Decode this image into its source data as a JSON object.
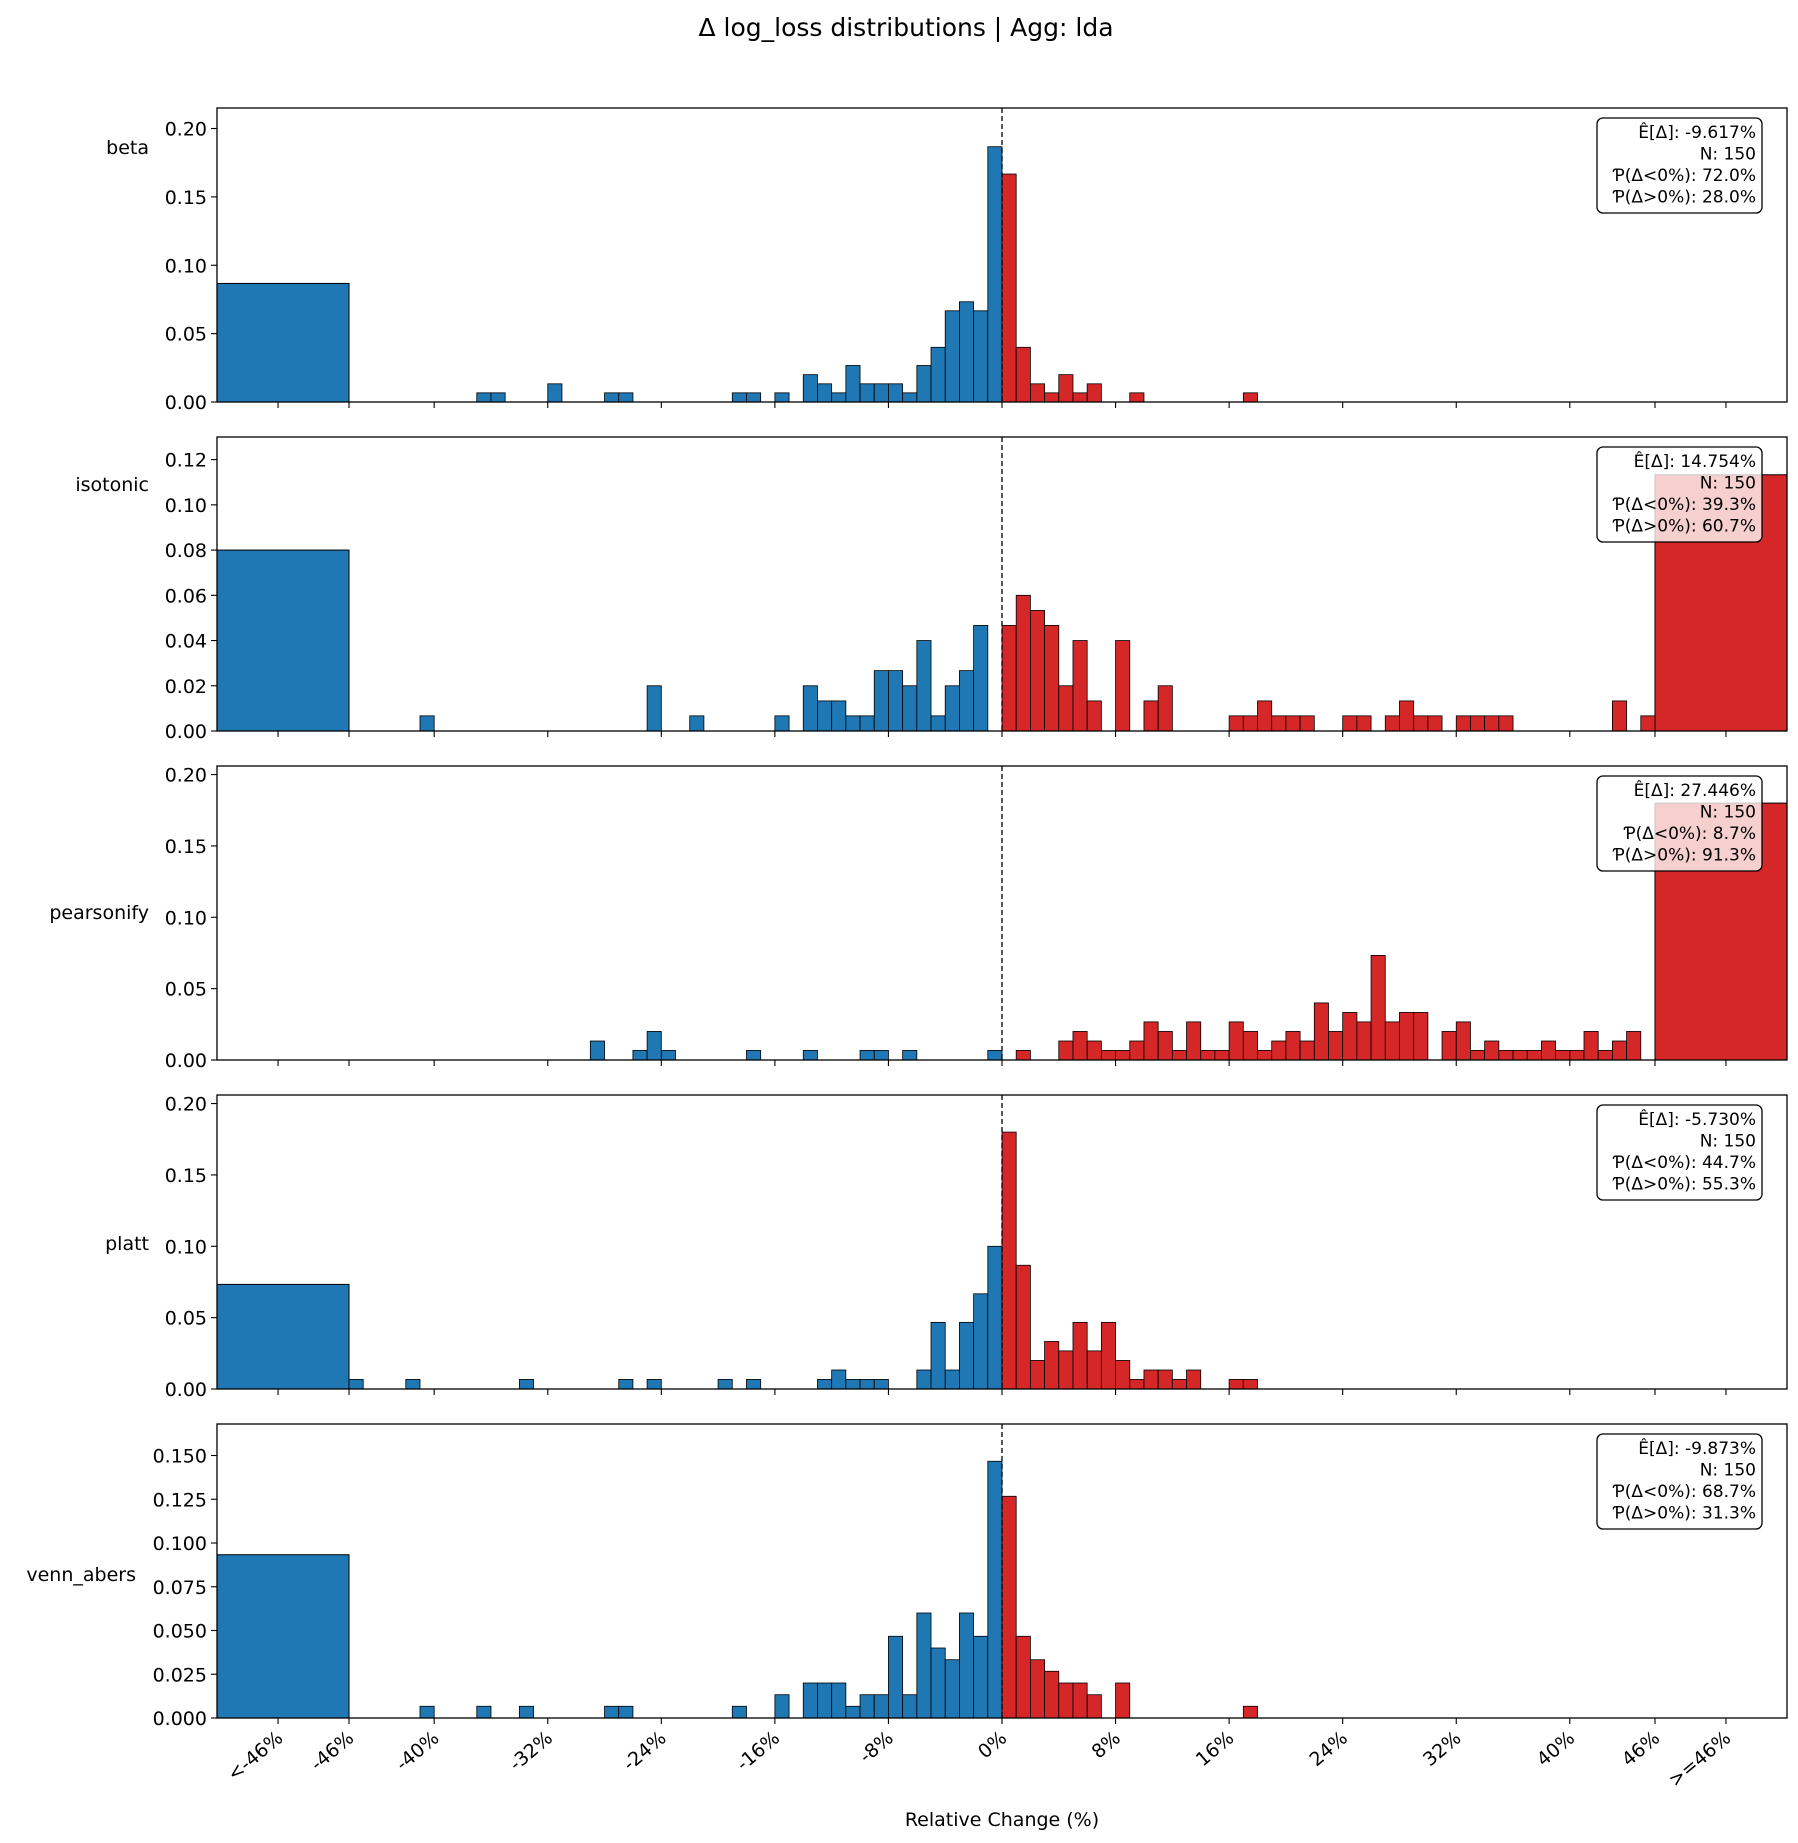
{
  "chart_data": {
    "type": "histogram-grid",
    "title": "Δ log_loss distributions | Agg: lda",
    "xlabel": "Relative Change (%)",
    "xticks": [
      "<-46%",
      "-46%",
      "-40%",
      "-32%",
      "-24%",
      "-16%",
      "-8%",
      "0%",
      "8%",
      "16%",
      "24%",
      "32%",
      "40%",
      "46%",
      ">=46%"
    ],
    "xtick_values": [
      -51,
      -46,
      -40,
      -32,
      -24,
      -16,
      -8,
      0,
      8,
      16,
      24,
      32,
      40,
      46,
      51
    ],
    "xlim": [
      -55.3,
      55.3
    ],
    "bin_width": 1,
    "overflow_threshold": 46,
    "zero_line": 0,
    "colors": {
      "negative": "#1f77b4",
      "positive": "#d62728",
      "edge": "#000000"
    },
    "panels": [
      {
        "name": "beta",
        "ylim": [
          0,
          0.215
        ],
        "yticks": [
          "0.00",
          "0.05",
          "0.10",
          "0.15",
          "0.20"
        ],
        "ytick_values": [
          0,
          0.05,
          0.1,
          0.15,
          0.2
        ],
        "underflow": 0.0867,
        "overflow": 0,
        "bins": [
          [
            -37,
            0.0067
          ],
          [
            -36,
            0.0067
          ],
          [
            -32,
            0.0133
          ],
          [
            -28,
            0.0067
          ],
          [
            -27,
            0.0067
          ],
          [
            -19,
            0.0067
          ],
          [
            -18,
            0.0067
          ],
          [
            -16,
            0.0067
          ],
          [
            -14,
            0.02
          ],
          [
            -13,
            0.0133
          ],
          [
            -12,
            0.0067
          ],
          [
            -11,
            0.0267
          ],
          [
            -10,
            0.0133
          ],
          [
            -9,
            0.0133
          ],
          [
            -8,
            0.0133
          ],
          [
            -7,
            0.0067
          ],
          [
            -6,
            0.0267
          ],
          [
            -5,
            0.04
          ],
          [
            -4,
            0.0667
          ],
          [
            -3,
            0.0733
          ],
          [
            -2,
            0.0667
          ],
          [
            -1,
            0.1867
          ],
          [
            0,
            0.1667
          ],
          [
            1,
            0.04
          ],
          [
            2,
            0.0133
          ],
          [
            3,
            0.0067
          ],
          [
            4,
            0.02
          ],
          [
            5,
            0.0067
          ],
          [
            6,
            0.0133
          ],
          [
            9,
            0.0067
          ],
          [
            17,
            0.0067
          ]
        ],
        "stats": [
          "Ê[Δ]: -9.617%",
          "N: 150",
          "Ƥ(Δ<0%): 72.0%",
          "Ƥ(Δ>0%): 28.0%"
        ]
      },
      {
        "name": "isotonic",
        "ylim": [
          0,
          0.13
        ],
        "yticks": [
          "0.00",
          "0.02",
          "0.04",
          "0.06",
          "0.08",
          "0.10",
          "0.12"
        ],
        "ytick_values": [
          0,
          0.02,
          0.04,
          0.06,
          0.08,
          0.1,
          0.12
        ],
        "underflow": 0.08,
        "overflow": 0.1133,
        "bins": [
          [
            -41,
            0.0067
          ],
          [
            -25,
            0.02
          ],
          [
            -22,
            0.0067
          ],
          [
            -16,
            0.0067
          ],
          [
            -14,
            0.02
          ],
          [
            -13,
            0.0133
          ],
          [
            -12,
            0.0133
          ],
          [
            -11,
            0.0067
          ],
          [
            -10,
            0.0067
          ],
          [
            -9,
            0.0267
          ],
          [
            -8,
            0.0267
          ],
          [
            -7,
            0.02
          ],
          [
            -6,
            0.04
          ],
          [
            -5,
            0.0067
          ],
          [
            -4,
            0.02
          ],
          [
            -3,
            0.0267
          ],
          [
            -2,
            0.0467
          ],
          [
            0,
            0.0467
          ],
          [
            1,
            0.06
          ],
          [
            2,
            0.0533
          ],
          [
            3,
            0.0467
          ],
          [
            4,
            0.02
          ],
          [
            5,
            0.04
          ],
          [
            6,
            0.0133
          ],
          [
            8,
            0.04
          ],
          [
            10,
            0.0133
          ],
          [
            11,
            0.02
          ],
          [
            16,
            0.0067
          ],
          [
            17,
            0.0067
          ],
          [
            18,
            0.0133
          ],
          [
            19,
            0.0067
          ],
          [
            20,
            0.0067
          ],
          [
            21,
            0.0067
          ],
          [
            24,
            0.0067
          ],
          [
            25,
            0.0067
          ],
          [
            27,
            0.0067
          ],
          [
            28,
            0.0133
          ],
          [
            29,
            0.0067
          ],
          [
            30,
            0.0067
          ],
          [
            32,
            0.0067
          ],
          [
            33,
            0.0067
          ],
          [
            34,
            0.0067
          ],
          [
            35,
            0.0067
          ],
          [
            43,
            0.0133
          ],
          [
            45,
            0.0067
          ]
        ],
        "stats": [
          "Ê[Δ]: 14.754%",
          "N: 150",
          "Ƥ(Δ<0%): 39.3%",
          "Ƥ(Δ>0%): 60.7%"
        ]
      },
      {
        "name": "pearsonify",
        "ylim": [
          0,
          0.206
        ],
        "yticks": [
          "0.00",
          "0.05",
          "0.10",
          "0.15",
          "0.20"
        ],
        "ytick_values": [
          0,
          0.05,
          0.1,
          0.15,
          0.2
        ],
        "underflow": 0,
        "overflow": 0.18,
        "bins": [
          [
            -29,
            0.0133
          ],
          [
            -26,
            0.0067
          ],
          [
            -25,
            0.02
          ],
          [
            -24,
            0.0067
          ],
          [
            -18,
            0.0067
          ],
          [
            -14,
            0.0067
          ],
          [
            -10,
            0.0067
          ],
          [
            -9,
            0.0067
          ],
          [
            -7,
            0.0067
          ],
          [
            -1,
            0.0067
          ],
          [
            1,
            0.0067
          ],
          [
            4,
            0.0133
          ],
          [
            5,
            0.02
          ],
          [
            6,
            0.0133
          ],
          [
            7,
            0.0067
          ],
          [
            8,
            0.0067
          ],
          [
            9,
            0.0133
          ],
          [
            10,
            0.0267
          ],
          [
            11,
            0.02
          ],
          [
            12,
            0.0067
          ],
          [
            13,
            0.0267
          ],
          [
            14,
            0.0067
          ],
          [
            15,
            0.0067
          ],
          [
            16,
            0.0267
          ],
          [
            17,
            0.02
          ],
          [
            18,
            0.0067
          ],
          [
            19,
            0.0133
          ],
          [
            20,
            0.02
          ],
          [
            21,
            0.0133
          ],
          [
            22,
            0.04
          ],
          [
            23,
            0.02
          ],
          [
            24,
            0.0333
          ],
          [
            25,
            0.0267
          ],
          [
            26,
            0.0733
          ],
          [
            27,
            0.0267
          ],
          [
            28,
            0.0333
          ],
          [
            29,
            0.0333
          ],
          [
            31,
            0.02
          ],
          [
            32,
            0.0267
          ],
          [
            33,
            0.0067
          ],
          [
            34,
            0.0133
          ],
          [
            35,
            0.0067
          ],
          [
            36,
            0.0067
          ],
          [
            37,
            0.0067
          ],
          [
            38,
            0.0133
          ],
          [
            39,
            0.0067
          ],
          [
            40,
            0.0067
          ],
          [
            41,
            0.02
          ],
          [
            42,
            0.0067
          ],
          [
            43,
            0.0133
          ],
          [
            44,
            0.02
          ]
        ],
        "stats": [
          "Ê[Δ]: 27.446%",
          "N: 150",
          "Ƥ(Δ<0%): 8.7%",
          "Ƥ(Δ>0%): 91.3%"
        ]
      },
      {
        "name": "platt",
        "ylim": [
          0,
          0.206
        ],
        "yticks": [
          "0.00",
          "0.05",
          "0.10",
          "0.15",
          "0.20"
        ],
        "ytick_values": [
          0,
          0.05,
          0.1,
          0.15,
          0.2
        ],
        "underflow": 0.0733,
        "overflow": 0,
        "bins": [
          [
            -46,
            0.0067
          ],
          [
            -42,
            0.0067
          ],
          [
            -34,
            0.0067
          ],
          [
            -27,
            0.0067
          ],
          [
            -25,
            0.0067
          ],
          [
            -20,
            0.0067
          ],
          [
            -18,
            0.0067
          ],
          [
            -13,
            0.0067
          ],
          [
            -12,
            0.0133
          ],
          [
            -11,
            0.0067
          ],
          [
            -10,
            0.0067
          ],
          [
            -9,
            0.0067
          ],
          [
            -6,
            0.0133
          ],
          [
            -5,
            0.0467
          ],
          [
            -4,
            0.0133
          ],
          [
            -3,
            0.0467
          ],
          [
            -2,
            0.0667
          ],
          [
            -1,
            0.1
          ],
          [
            0,
            0.18
          ],
          [
            1,
            0.0867
          ],
          [
            2,
            0.02
          ],
          [
            3,
            0.0333
          ],
          [
            4,
            0.0267
          ],
          [
            5,
            0.0467
          ],
          [
            6,
            0.0267
          ],
          [
            7,
            0.0467
          ],
          [
            8,
            0.02
          ],
          [
            9,
            0.0067
          ],
          [
            10,
            0.0133
          ],
          [
            11,
            0.0133
          ],
          [
            12,
            0.0067
          ],
          [
            13,
            0.0133
          ],
          [
            16,
            0.0067
          ],
          [
            17,
            0.0067
          ]
        ],
        "stats": [
          "Ê[Δ]: -5.730%",
          "N: 150",
          "Ƥ(Δ<0%): 44.7%",
          "Ƥ(Δ>0%): 55.3%"
        ]
      },
      {
        "name": "venn_abers",
        "ylim": [
          0,
          0.168
        ],
        "yticks": [
          "0.000",
          "0.025",
          "0.050",
          "0.075",
          "0.100",
          "0.125",
          "0.150"
        ],
        "ytick_values": [
          0,
          0.025,
          0.05,
          0.075,
          0.1,
          0.125,
          0.15
        ],
        "underflow": 0.0933,
        "overflow": 0,
        "bins": [
          [
            -41,
            0.0067
          ],
          [
            -37,
            0.0067
          ],
          [
            -34,
            0.0067
          ],
          [
            -28,
            0.0067
          ],
          [
            -27,
            0.0067
          ],
          [
            -19,
            0.0067
          ],
          [
            -16,
            0.0133
          ],
          [
            -14,
            0.02
          ],
          [
            -13,
            0.02
          ],
          [
            -12,
            0.02
          ],
          [
            -11,
            0.0067
          ],
          [
            -10,
            0.0133
          ],
          [
            -9,
            0.0133
          ],
          [
            -8,
            0.0467
          ],
          [
            -7,
            0.0133
          ],
          [
            -6,
            0.06
          ],
          [
            -5,
            0.04
          ],
          [
            -4,
            0.0333
          ],
          [
            -3,
            0.06
          ],
          [
            -2,
            0.0467
          ],
          [
            -1,
            0.1467
          ],
          [
            0,
            0.1267
          ],
          [
            1,
            0.0467
          ],
          [
            2,
            0.0333
          ],
          [
            3,
            0.0267
          ],
          [
            4,
            0.02
          ],
          [
            5,
            0.02
          ],
          [
            6,
            0.0133
          ],
          [
            8,
            0.02
          ],
          [
            17,
            0.0067
          ]
        ],
        "stats": [
          "Ê[Δ]: -9.873%",
          "N: 150",
          "Ƥ(Δ<0%): 68.7%",
          "Ƥ(Δ>0%): 31.3%"
        ]
      }
    ]
  }
}
